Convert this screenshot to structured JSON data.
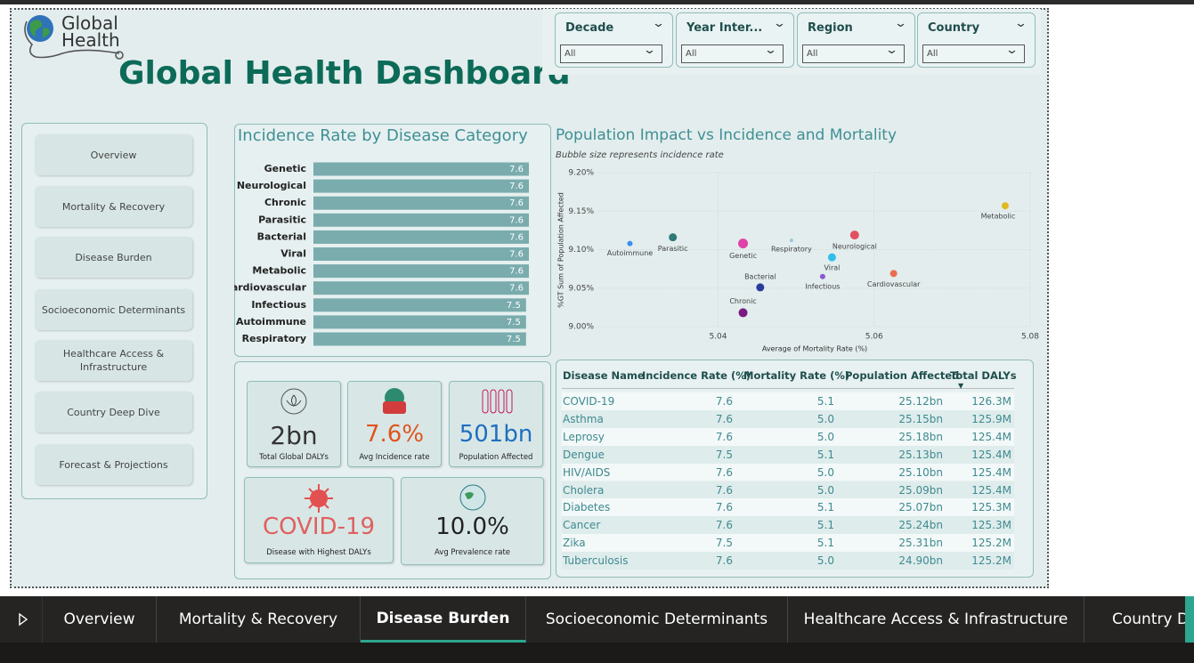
{
  "logo": {
    "line1": "Global",
    "line2": "Health"
  },
  "title": "Global Health Dashboard",
  "filters": [
    {
      "label": "Decade",
      "value": "All"
    },
    {
      "label": "Year Inter...",
      "value": "All"
    },
    {
      "label": "Region",
      "value": "All"
    },
    {
      "label": "Country",
      "value": "All"
    }
  ],
  "nav": [
    "Overview",
    "Mortality & Recovery",
    "Disease Burden",
    "Socioeconomic Determinants",
    "Healthcare Access & Infrastructure",
    "Country Deep Dive",
    "Forecast & Projections"
  ],
  "chart_data": [
    {
      "type": "bar",
      "title": "Incidence Rate by Disease Category",
      "color": "#7aacad",
      "categories": [
        "Genetic",
        "Neurological",
        "Chronic",
        "Parasitic",
        "Bacterial",
        "Viral",
        "Metabolic",
        "Cardiovascular",
        "Infectious",
        "Autoimmune",
        "Respiratory"
      ],
      "values": [
        7.6,
        7.6,
        7.6,
        7.6,
        7.6,
        7.6,
        7.6,
        7.6,
        7.5,
        7.5,
        7.5
      ]
    },
    {
      "type": "scatter",
      "title": "Population Impact vs Incidence and Mortality",
      "subtitle": "Bubble size represents incidence rate",
      "x_label": "Average of Mortality Rate (%)",
      "y_label": "%GT Sum of Population Affected",
      "categories": [
        "Metabolic",
        "Autoimmune",
        "Parasitic",
        "Genetic",
        "Respiratory",
        "Neurological",
        "Viral",
        "Infectious",
        "Cardiovascular",
        "Bacterial",
        "Chronic"
      ],
      "x": [
        5.0768,
        5.0287,
        5.0342,
        5.0432,
        5.0494,
        5.0575,
        5.0546,
        5.0534,
        5.0625,
        5.0454,
        5.0432
      ],
      "values": [
        9.157,
        9.108,
        9.116,
        9.108,
        9.112,
        9.119,
        9.09,
        9.065,
        9.069,
        9.051,
        9.018
      ],
      "colors": [
        "#e0b825",
        "#3b8ff0",
        "#2d7a78",
        "#e040a8",
        "#9ec8d8",
        "#e05060",
        "#2ec0e8",
        "#8a5ad0",
        "#e87050",
        "#283c9c",
        "#7a1a82"
      ],
      "xlim": [
        5.021,
        5.08
      ],
      "xticks": [
        5.04,
        5.06,
        5.08
      ],
      "ylim": [
        9.0,
        9.2
      ],
      "yticks": [
        {
          "value": 9.0,
          "label": "9.00%"
        },
        {
          "value": 9.05,
          "label": "9.05%"
        },
        {
          "value": 9.1,
          "label": "9.10%"
        },
        {
          "value": 9.15,
          "label": "9.15%"
        },
        {
          "value": 9.2,
          "label": "9.20%"
        }
      ],
      "grid": true
    }
  ],
  "kpis": [
    {
      "value": "2bn",
      "label": "Total Global DALYs"
    },
    {
      "value": "7.6%",
      "label": "Avg Incidence rate"
    },
    {
      "value": "501bn",
      "label": "Population Affected"
    },
    {
      "value": "COVID-19",
      "label": "Disease with Highest DALYs"
    },
    {
      "value": "10.0%",
      "label": "Avg Prevalence rate"
    }
  ],
  "table": {
    "columns": [
      "Disease Name",
      "Incidence Rate (%)",
      "Mortality Rate (%)",
      "Population Affected",
      "Total DALYs"
    ],
    "rows": [
      [
        "COVID-19",
        "7.6",
        "5.1",
        "25.12bn",
        "126.3M"
      ],
      [
        "Asthma",
        "7.6",
        "5.0",
        "25.15bn",
        "125.9M"
      ],
      [
        "Leprosy",
        "7.6",
        "5.0",
        "25.18bn",
        "125.4M"
      ],
      [
        "Dengue",
        "7.5",
        "5.1",
        "25.13bn",
        "125.4M"
      ],
      [
        "HIV/AIDS",
        "7.6",
        "5.0",
        "25.10bn",
        "125.4M"
      ],
      [
        "Cholera",
        "7.6",
        "5.0",
        "25.09bn",
        "125.4M"
      ],
      [
        "Diabetes",
        "7.6",
        "5.1",
        "25.07bn",
        "125.3M"
      ],
      [
        "Cancer",
        "7.6",
        "5.1",
        "25.24bn",
        "125.3M"
      ],
      [
        "Zika",
        "7.5",
        "5.1",
        "25.31bn",
        "125.2M"
      ],
      [
        "Tuberculosis",
        "7.6",
        "5.0",
        "24.90bn",
        "125.2M"
      ]
    ]
  },
  "tabs": [
    "Overview",
    "Mortality & Recovery",
    "Disease Burden",
    "Socioeconomic Determinants",
    "Healthcare Access & Infrastructure",
    "Country Deep Dive"
  ]
}
